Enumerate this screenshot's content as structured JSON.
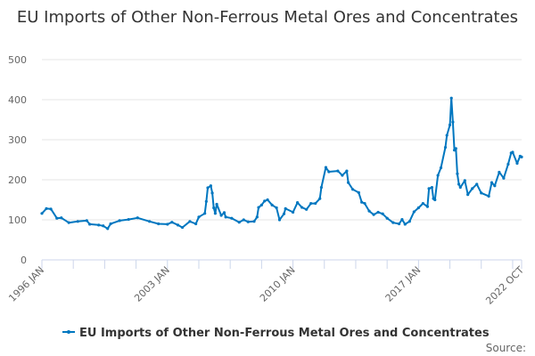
{
  "chart_data": {
    "type": "line",
    "title": "EU Imports of Other Non-Ferrous Metal Ores and Concentrates",
    "xlabel": "",
    "ylabel": "",
    "ylim": [
      0,
      500
    ],
    "yticks": [
      0,
      100,
      200,
      300,
      400,
      500
    ],
    "xlim": [
      "1996-01",
      "2022-10"
    ],
    "xtick_labels": [
      {
        "date": "1996-01",
        "label": "1996 JAN"
      },
      {
        "date": "2003-01",
        "label": "2003 JAN"
      },
      {
        "date": "2010-01",
        "label": "2010 JAN"
      },
      {
        "date": "2017-01",
        "label": "2017 JAN"
      },
      {
        "date": "2022-10",
        "label": "2022 OCT"
      }
    ],
    "grid": "horizontal",
    "legend_position": "bottom",
    "color": "#0077c0",
    "series": [
      {
        "name": "EU Imports of Other Non-Ferrous Metal Ores and Concentrates",
        "points": [
          [
            "1996-01",
            116
          ],
          [
            "1996-04",
            128
          ],
          [
            "1996-07",
            127
          ],
          [
            "1996-11",
            104
          ],
          [
            "1997-02",
            105
          ],
          [
            "1997-07",
            93
          ],
          [
            "1998-01",
            96
          ],
          [
            "1998-07",
            98
          ],
          [
            "1998-09",
            89
          ],
          [
            "1999-03",
            87
          ],
          [
            "1999-06",
            85
          ],
          [
            "1999-09",
            78
          ],
          [
            "1999-11",
            90
          ],
          [
            "2000-05",
            98
          ],
          [
            "2000-11",
            101
          ],
          [
            "2001-05",
            105
          ],
          [
            "2002-01",
            96
          ],
          [
            "2002-07",
            90
          ],
          [
            "2003-01",
            89
          ],
          [
            "2003-04",
            94
          ],
          [
            "2003-08",
            87
          ],
          [
            "2003-11",
            81
          ],
          [
            "2004-04",
            96
          ],
          [
            "2004-08",
            90
          ],
          [
            "2004-10",
            107
          ],
          [
            "2005-02",
            116
          ],
          [
            "2005-03",
            146
          ],
          [
            "2005-04",
            180
          ],
          [
            "2005-06",
            185
          ],
          [
            "2005-07",
            167
          ],
          [
            "2005-08",
            130
          ],
          [
            "2005-09",
            116
          ],
          [
            "2005-10",
            139
          ],
          [
            "2006-01",
            111
          ],
          [
            "2006-03",
            118
          ],
          [
            "2006-04",
            107
          ],
          [
            "2006-08",
            104
          ],
          [
            "2007-01",
            94
          ],
          [
            "2007-04",
            100
          ],
          [
            "2007-07",
            95
          ],
          [
            "2007-11",
            96
          ],
          [
            "2008-01",
            107
          ],
          [
            "2008-02",
            131
          ],
          [
            "2008-04",
            137
          ],
          [
            "2008-06",
            147
          ],
          [
            "2008-08",
            150
          ],
          [
            "2008-11",
            137
          ],
          [
            "2009-02",
            130
          ],
          [
            "2009-04",
            100
          ],
          [
            "2009-07",
            115
          ],
          [
            "2009-08",
            128
          ],
          [
            "2010-01",
            119
          ],
          [
            "2010-04",
            143
          ],
          [
            "2010-07",
            131
          ],
          [
            "2010-10",
            126
          ],
          [
            "2011-01",
            141
          ],
          [
            "2011-04",
            141
          ],
          [
            "2011-07",
            153
          ],
          [
            "2011-08",
            181
          ],
          [
            "2011-11",
            231
          ],
          [
            "2012-01",
            220
          ],
          [
            "2012-07",
            222
          ],
          [
            "2012-10",
            211
          ],
          [
            "2013-01",
            222
          ],
          [
            "2013-02",
            193
          ],
          [
            "2013-05",
            176
          ],
          [
            "2013-09",
            168
          ],
          [
            "2013-11",
            144
          ],
          [
            "2014-01",
            141
          ],
          [
            "2014-04",
            122
          ],
          [
            "2014-07",
            113
          ],
          [
            "2014-10",
            119
          ],
          [
            "2015-01",
            115
          ],
          [
            "2015-04",
            104
          ],
          [
            "2015-08",
            93
          ],
          [
            "2015-12",
            90
          ],
          [
            "2016-02",
            101
          ],
          [
            "2016-04",
            89
          ],
          [
            "2016-07",
            96
          ],
          [
            "2016-10",
            120
          ],
          [
            "2017-01",
            130
          ],
          [
            "2017-04",
            141
          ],
          [
            "2017-07",
            133
          ],
          [
            "2017-08",
            178
          ],
          [
            "2017-10",
            181
          ],
          [
            "2017-11",
            153
          ],
          [
            "2017-12",
            150
          ],
          [
            "2018-02",
            211
          ],
          [
            "2018-04",
            230
          ],
          [
            "2018-07",
            281
          ],
          [
            "2018-08",
            311
          ],
          [
            "2018-10",
            337
          ],
          [
            "2018-11",
            404
          ],
          [
            "2018-12",
            344
          ],
          [
            "2019-01",
            274
          ],
          [
            "2019-02",
            278
          ],
          [
            "2019-03",
            215
          ],
          [
            "2019-04",
            189
          ],
          [
            "2019-05",
            181
          ],
          [
            "2019-08",
            198
          ],
          [
            "2019-10",
            163
          ],
          [
            "2020-01",
            178
          ],
          [
            "2020-04",
            189
          ],
          [
            "2020-07",
            167
          ],
          [
            "2020-12",
            159
          ],
          [
            "2021-02",
            193
          ],
          [
            "2021-04",
            185
          ],
          [
            "2021-07",
            219
          ],
          [
            "2021-10",
            204
          ],
          [
            "2022-01",
            239
          ],
          [
            "2022-03",
            267
          ],
          [
            "2022-04",
            269
          ],
          [
            "2022-07",
            241
          ],
          [
            "2022-09",
            259
          ],
          [
            "2022-10",
            257
          ]
        ]
      }
    ],
    "source_label": "Source:"
  }
}
